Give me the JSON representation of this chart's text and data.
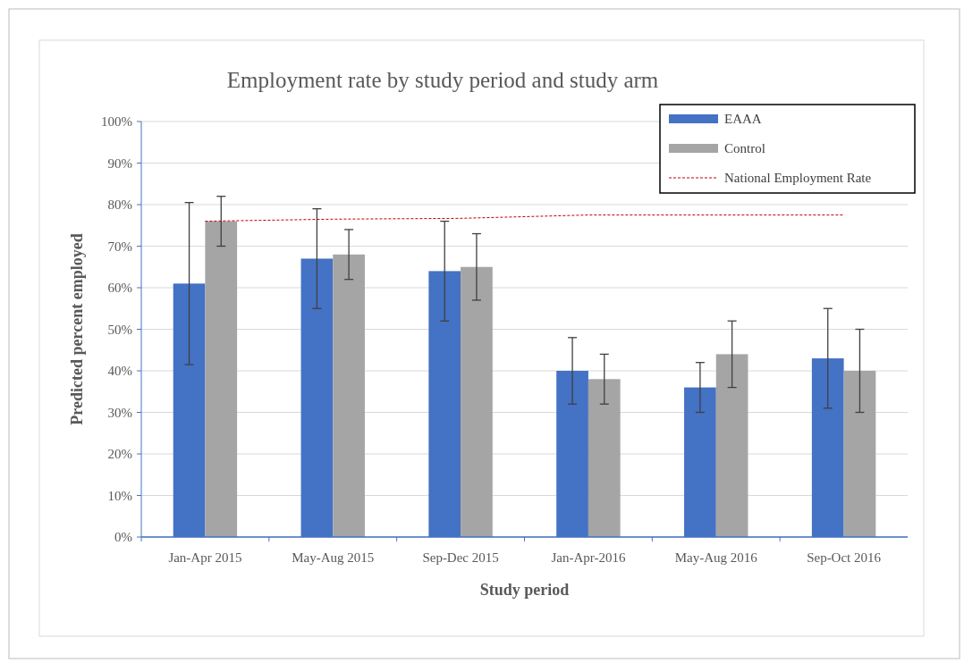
{
  "chart_data": {
    "type": "bar",
    "title": "Employment rate by study period and study arm",
    "xlabel": "Study period",
    "ylabel": "Predicted percent employed",
    "categories": [
      "Jan-Apr 2015",
      "May-Aug 2015",
      "Sep-Dec 2015",
      "Jan-Apr-2016",
      "May-Aug 2016",
      "Sep-Oct 2016"
    ],
    "series": [
      {
        "name": "EAAA",
        "color": "#4472c4",
        "values": [
          61,
          67,
          64,
          40,
          36,
          43
        ],
        "errors": [
          [
            41.5,
            80.5
          ],
          [
            55,
            79
          ],
          [
            52,
            76
          ],
          [
            32,
            48
          ],
          [
            30,
            42
          ],
          [
            31,
            55
          ]
        ]
      },
      {
        "name": "Control",
        "color": "#a5a5a5",
        "values": [
          76,
          68,
          65,
          38,
          44,
          40
        ],
        "errors": [
          [
            70,
            82
          ],
          [
            62,
            74
          ],
          [
            57,
            73
          ],
          [
            32,
            44
          ],
          [
            36,
            52
          ],
          [
            30,
            50
          ]
        ]
      },
      {
        "name": "National Employment Rate",
        "type": "line",
        "color": "#c00000",
        "line_style": "dashed",
        "marker": "none",
        "values": [
          76,
          76.5,
          76.7,
          77.5,
          77.5,
          77.5
        ]
      }
    ],
    "ylim": [
      0,
      100
    ],
    "yticks": [
      {
        "value": 0,
        "label": "0%"
      },
      {
        "value": 10,
        "label": "10%"
      },
      {
        "value": 20,
        "label": "20%"
      },
      {
        "value": 30,
        "label": "30%"
      },
      {
        "value": 40,
        "label": "40%"
      },
      {
        "value": 50,
        "label": "50%"
      },
      {
        "value": 60,
        "label": "60%"
      },
      {
        "value": 70,
        "label": "70%"
      },
      {
        "value": 80,
        "label": "80%"
      },
      {
        "value": 90,
        "label": "90%"
      },
      {
        "value": 100,
        "label": "100%"
      }
    ],
    "grid": "y",
    "legend": "top right"
  }
}
